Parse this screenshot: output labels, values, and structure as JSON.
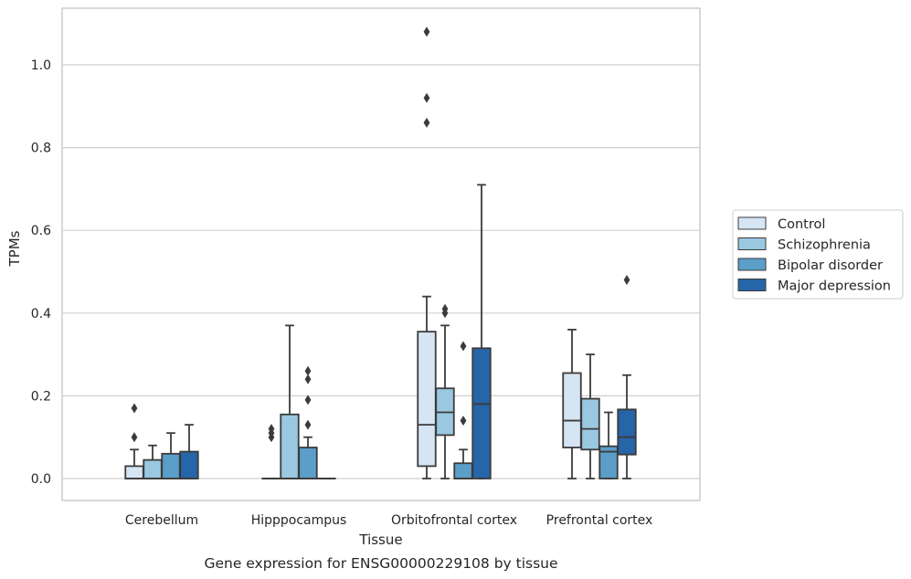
{
  "chart_data": {
    "type": "box",
    "caption": "Gene expression for ENSG00000229108 by tissue",
    "xlabel": "Tissue",
    "ylabel": "TPMs",
    "ylim": [
      -0.05,
      1.14
    ],
    "yticks": [
      0.0,
      0.2,
      0.4,
      0.6,
      0.8,
      1.0
    ],
    "ytick_labels": [
      "0.0",
      "0.2",
      "0.4",
      "0.6",
      "0.8",
      "1.0"
    ],
    "grid": "horizontal",
    "legend_position": "right",
    "categories": [
      "Cerebellum",
      "Hipppocampus",
      "Orbitofrontal cortex",
      "Prefrontal cortex"
    ],
    "series": [
      {
        "name": "Control",
        "color": "#d6e5f4",
        "boxes": [
          {
            "whislo": 0.0,
            "q1": 0.0,
            "med": 0.0,
            "q3": 0.03,
            "whishi": 0.07,
            "fliers": [
              0.1,
              0.17
            ]
          },
          {
            "whislo": 0.0,
            "q1": 0.0,
            "med": 0.0,
            "q3": 0.0,
            "whishi": 0.0,
            "fliers": [
              0.1,
              0.11,
              0.12
            ]
          },
          {
            "whislo": 0.0,
            "q1": 0.03,
            "med": 0.13,
            "q3": 0.355,
            "whishi": 0.44,
            "fliers": [
              0.86,
              0.92,
              1.08
            ]
          },
          {
            "whislo": 0.0,
            "q1": 0.075,
            "med": 0.14,
            "q3": 0.255,
            "whishi": 0.36,
            "fliers": []
          }
        ]
      },
      {
        "name": "Schizophrenia",
        "color": "#9ac8e0",
        "boxes": [
          {
            "whislo": 0.0,
            "q1": 0.0,
            "med": 0.0,
            "q3": 0.045,
            "whishi": 0.08,
            "fliers": []
          },
          {
            "whislo": 0.0,
            "q1": 0.0,
            "med": 0.0,
            "q3": 0.155,
            "whishi": 0.37,
            "fliers": []
          },
          {
            "whislo": 0.0,
            "q1": 0.105,
            "med": 0.16,
            "q3": 0.218,
            "whishi": 0.37,
            "fliers": [
              0.4,
              0.41
            ]
          },
          {
            "whislo": 0.0,
            "q1": 0.07,
            "med": 0.12,
            "q3": 0.193,
            "whishi": 0.3,
            "fliers": []
          }
        ]
      },
      {
        "name": "Bipolar disorder",
        "color": "#5a9ec9",
        "boxes": [
          {
            "whislo": 0.0,
            "q1": 0.0,
            "med": 0.0,
            "q3": 0.06,
            "whishi": 0.11,
            "fliers": []
          },
          {
            "whislo": 0.0,
            "q1": 0.0,
            "med": 0.0,
            "q3": 0.075,
            "whishi": 0.1,
            "fliers": [
              0.13,
              0.19,
              0.24,
              0.26
            ]
          },
          {
            "whislo": 0.0,
            "q1": 0.0,
            "med": 0.0,
            "q3": 0.037,
            "whishi": 0.07,
            "fliers": [
              0.14,
              0.32
            ]
          },
          {
            "whislo": 0.0,
            "q1": 0.0,
            "med": 0.065,
            "q3": 0.078,
            "whishi": 0.16,
            "fliers": []
          }
        ]
      },
      {
        "name": "Major depression",
        "color": "#2565a8",
        "boxes": [
          {
            "whislo": 0.0,
            "q1": 0.0,
            "med": 0.0,
            "q3": 0.065,
            "whishi": 0.13,
            "fliers": []
          },
          {
            "whislo": 0.0,
            "q1": 0.0,
            "med": 0.0,
            "q3": 0.0,
            "whishi": 0.0,
            "fliers": []
          },
          {
            "whislo": 0.0,
            "q1": 0.0,
            "med": 0.18,
            "q3": 0.315,
            "whishi": 0.71,
            "fliers": []
          },
          {
            "whislo": 0.0,
            "q1": 0.058,
            "med": 0.1,
            "q3": 0.167,
            "whishi": 0.25,
            "fliers": [
              0.48
            ]
          }
        ]
      }
    ],
    "legend_title": ""
  }
}
